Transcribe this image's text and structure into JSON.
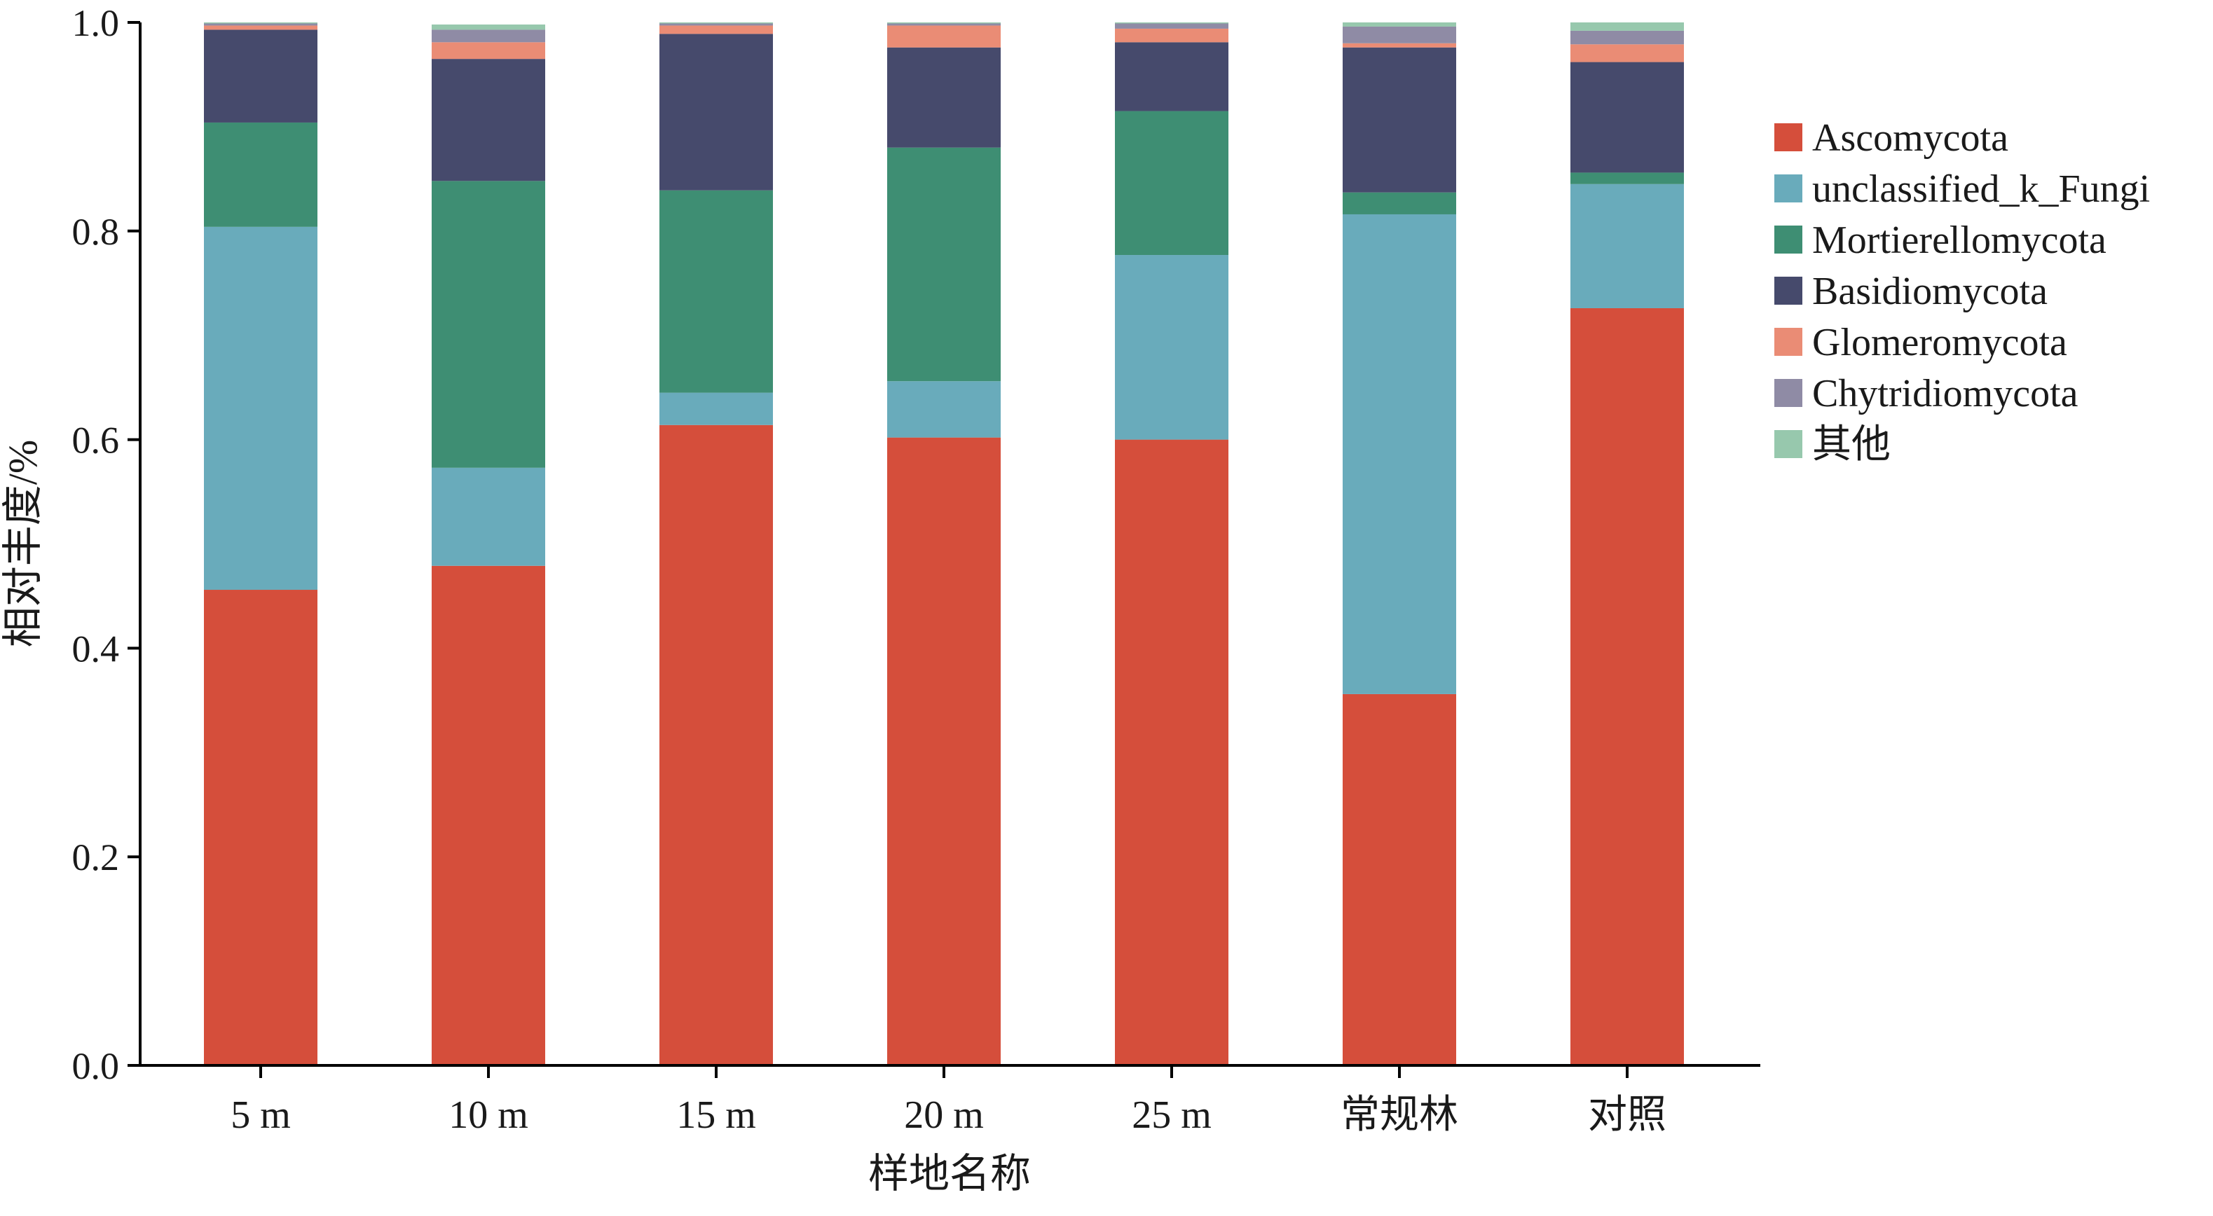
{
  "chart_data": {
    "type": "bar",
    "stacked": true,
    "title": "",
    "xlabel": "样地名称",
    "ylabel": "相对丰度/%",
    "ylim": [
      0,
      1.0
    ],
    "yticks": [
      "0.0",
      "0.2",
      "0.4",
      "0.6",
      "0.8",
      "1.0"
    ],
    "grid": false,
    "legend_position": "right",
    "categories": [
      "5 m",
      "10 m",
      "15 m",
      "20 m",
      "25 m",
      "常规林",
      "对照"
    ],
    "series": [
      {
        "name": "Ascomycota",
        "color": "#d54e3b",
        "values": [
          0.456,
          0.479,
          0.614,
          0.602,
          0.6,
          0.356,
          0.726
        ]
      },
      {
        "name": "unclassified_k_Fungi",
        "color": "#69abbb",
        "values": [
          0.348,
          0.094,
          0.031,
          0.054,
          0.177,
          0.46,
          0.119
        ]
      },
      {
        "name": "Mortierellomycota",
        "color": "#3e8e73",
        "values": [
          0.1,
          0.275,
          0.194,
          0.224,
          0.138,
          0.021,
          0.011
        ]
      },
      {
        "name": "Basidiomycota",
        "color": "#464a6c",
        "values": [
          0.089,
          0.117,
          0.15,
          0.096,
          0.066,
          0.139,
          0.106
        ]
      },
      {
        "name": "Glomeromycota",
        "color": "#ea8c75",
        "values": [
          0.004,
          0.016,
          0.008,
          0.021,
          0.013,
          0.004,
          0.017
        ]
      },
      {
        "name": "Chytridiomycota",
        "color": "#8f8ba5",
        "values": [
          0.002,
          0.012,
          0.002,
          0.002,
          0.005,
          0.016,
          0.013
        ]
      },
      {
        "name": "其他",
        "color": "#97c8ad",
        "values": [
          0.001,
          0.005,
          0.001,
          0.001,
          0.001,
          0.004,
          0.008
        ]
      }
    ]
  }
}
